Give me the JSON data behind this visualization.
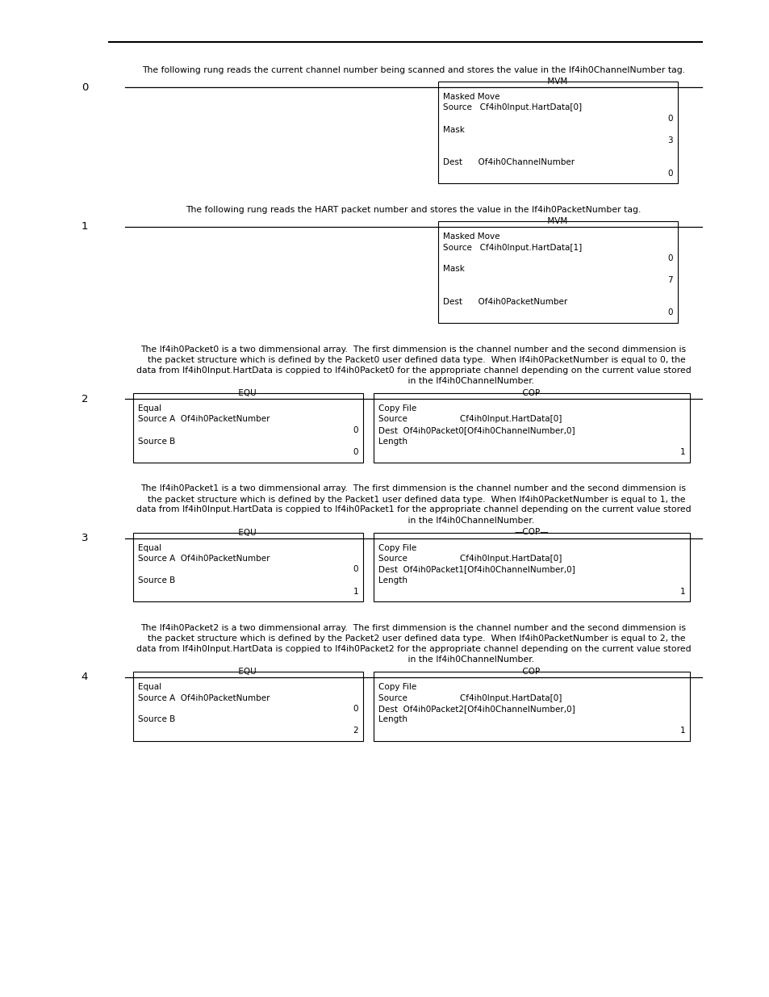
{
  "bg_color": "#ffffff",
  "sections": [
    {
      "rung": "0",
      "desc": "The following rung reads the current channel number being scanned and stores the value in the If4ih0ChannelNumber tag.",
      "type": "mvm",
      "box_title": "MVM",
      "box_lines": [
        [
          "Masked Move",
          false
        ],
        [
          "Source   Cf4ih0Input.HartData[0]",
          false
        ],
        [
          "0",
          true
        ],
        [
          "Mask",
          false
        ],
        [
          "3",
          true
        ],
        [
          "",
          false
        ],
        [
          "Dest      Of4ih0ChannelNumber",
          false
        ],
        [
          "0",
          true
        ]
      ]
    },
    {
      "rung": "1",
      "desc": "The following rung reads the HART packet number and stores the value in the If4ih0PacketNumber tag.",
      "type": "mvm",
      "box_title": "MVM",
      "box_lines": [
        [
          "Masked Move",
          false
        ],
        [
          "Source   Cf4ih0Input.HartData[1]",
          false
        ],
        [
          "0",
          true
        ],
        [
          "Mask",
          false
        ],
        [
          "7",
          true
        ],
        [
          "",
          false
        ],
        [
          "Dest      Of4ih0PacketNumber",
          false
        ],
        [
          "0",
          true
        ]
      ]
    },
    {
      "rung": "2",
      "paras": [
        "The If4ih0Packet0 is a two dimmensional array.  The first dimmension is the channel number and the second dimmension is",
        "  the packet structure which is defined by the Packet0 user defined data type.  When If4ih0PacketNumber is equal to 0, the",
        "data from If4ih0Input.HartData is coppied to If4ih0Packet0 for the appropriate channel depending on the current value stored",
        "                                         in the If4ih0ChannelNumber."
      ],
      "type": "equ_cop",
      "equ_title": "EQU",
      "equ_lines": [
        [
          "Equal",
          false
        ],
        [
          "Source A  Of4ih0PacketNumber",
          false
        ],
        [
          "0",
          true
        ],
        [
          "Source B",
          false
        ],
        [
          "0",
          true
        ]
      ],
      "cop_title": "COP",
      "cop_lines": [
        [
          "Copy File",
          false
        ],
        [
          "Source                    Cf4ih0Input.HartData[0]",
          false
        ],
        [
          "Dest  Of4ih0Packet0[Of4ih0ChannelNumber,0]",
          false
        ],
        [
          "Length",
          false
        ],
        [
          "1",
          true
        ]
      ]
    },
    {
      "rung": "3",
      "paras": [
        "The If4ih0Packet1 is a two dimmensional array.  The first dimmension is the channel number and the second dimmension is",
        "  the packet structure which is defined by the Packet1 user defined data type.  When If4ih0PacketNumber is equal to 1, the",
        "data from If4ih0Input.HartData is coppied to If4ih0Packet1 for the appropriate channel depending on the current value stored",
        "                                         in the If4ih0ChannelNumber."
      ],
      "type": "equ_cop",
      "equ_title": "EQU",
      "equ_lines": [
        [
          "Equal",
          false
        ],
        [
          "Source A  Of4ih0PacketNumber",
          false
        ],
        [
          "0",
          true
        ],
        [
          "Source B",
          false
        ],
        [
          "1",
          true
        ]
      ],
      "cop_title": "COP",
      "cop_lines": [
        [
          "Copy File",
          false
        ],
        [
          "Source                    Cf4ih0Input.HartData[0]",
          false
        ],
        [
          "Dest  Of4ih0Packet1[Of4ih0ChannelNumber,0]",
          false
        ],
        [
          "Length",
          false
        ],
        [
          "1",
          true
        ]
      ]
    },
    {
      "rung": "4",
      "paras": [
        "The If4ih0Packet2 is a two dimmensional array.  The first dimmension is the channel number and the second dimmension is",
        "  the packet structure which is defined by the Packet2 user defined data type.  When If4ih0PacketNumber is equal to 2, the",
        "data from If4ih0Input.HartData is coppied to If4ih0Packet2 for the appropriate channel depending on the current value stored",
        "                                         in the If4ih0ChannelNumber."
      ],
      "type": "equ_cop",
      "equ_title": "EQU",
      "equ_lines": [
        [
          "Equal",
          false
        ],
        [
          "Source A  Of4ih0PacketNumber",
          false
        ],
        [
          "0",
          true
        ],
        [
          "Source B",
          false
        ],
        [
          "2",
          true
        ]
      ],
      "cop_title": "COP",
      "cop_lines": [
        [
          "Copy File",
          false
        ],
        [
          "Source                    Cf4ih0Input.HartData[0]",
          false
        ],
        [
          "Dest  Of4ih0Packet2[Of4ih0ChannelNumber,0]",
          false
        ],
        [
          "Length",
          false
        ],
        [
          "1",
          true
        ]
      ]
    }
  ]
}
